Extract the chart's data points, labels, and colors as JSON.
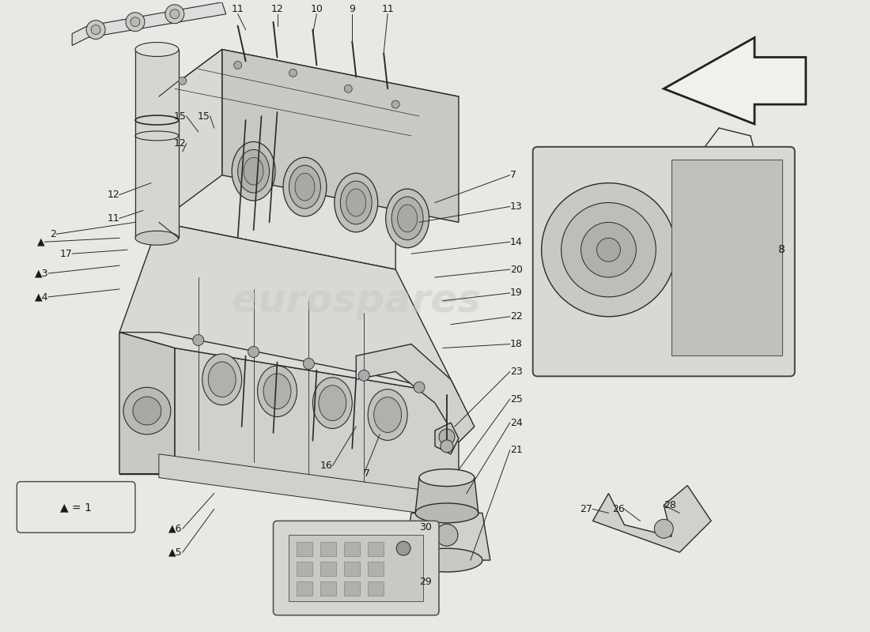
{
  "bg_color": "#e8e8e4",
  "line_color": "#2a2a2a",
  "sketch_color": "#3a3a3a",
  "label_color": "#1a1a1a",
  "watermark_color": "#c8c8c8",
  "watermark_alpha": 0.5,
  "watermark_text": "eurospares",
  "legend_text": "▲ = 1",
  "arrow_fill": "#f0f0f0",
  "inset_bg": "#d8d8d4",
  "part_fill": "#e0e0dc",
  "part_fill_dark": "#c8c8c4",
  "part_fill_light": "#ececea"
}
